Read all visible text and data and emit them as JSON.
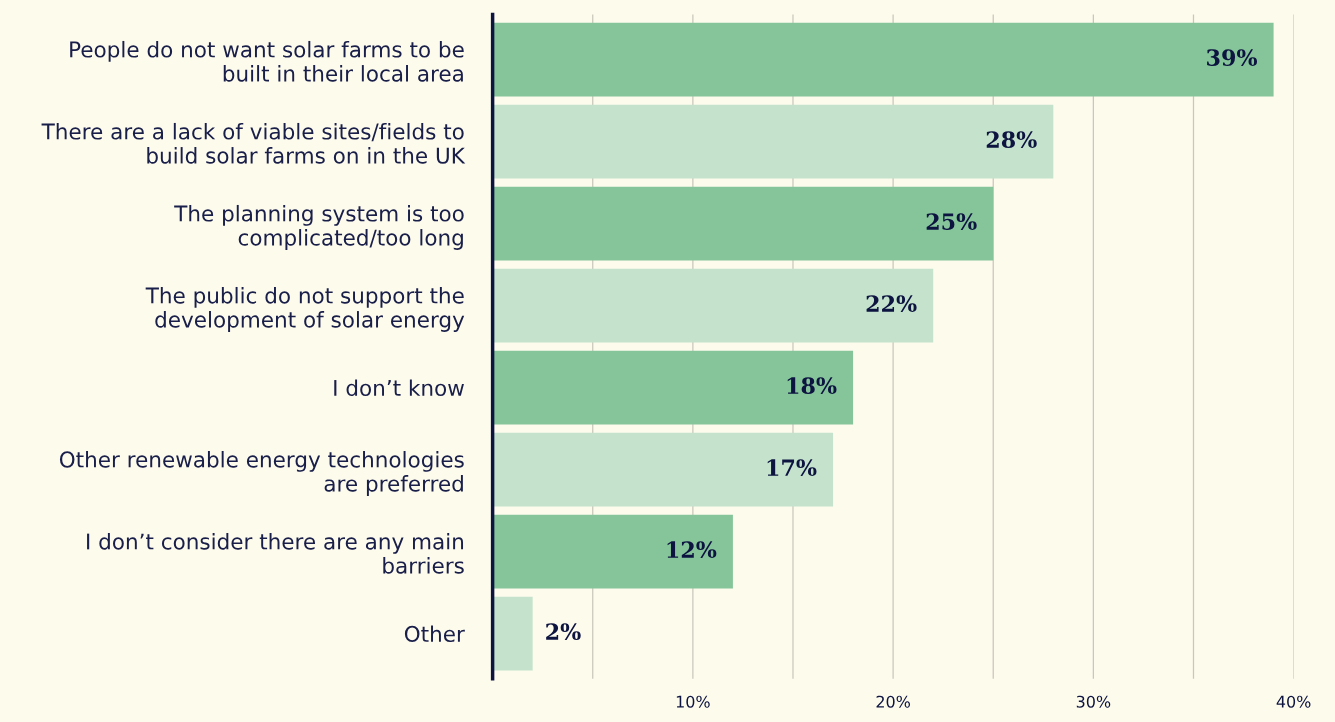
{
  "chart_data": {
    "type": "bar",
    "orientation": "horizontal",
    "categories": [
      "People do not want solar farms to be\nbuilt in their local area",
      "There are a lack of viable sites/fields to\nbuild solar farms on in the UK",
      "The planning system is too\ncomplicated/too long",
      "The public do not support the\ndevelopment of solar energy",
      "I don’t know",
      "Other renewable energy technologies\nare preferred",
      "I don’t consider there are any main\nbarriers",
      "Other"
    ],
    "values": [
      39,
      28,
      25,
      22,
      18,
      17,
      12,
      2
    ],
    "colors": [
      "#86c59a",
      "#c4e2cc",
      "#86c59a",
      "#c4e2cc",
      "#86c59a",
      "#c4e2cc",
      "#86c59a",
      "#c4e2cc"
    ],
    "value_labels": [
      "39%",
      "28%",
      "25%",
      "22%",
      "18%",
      "17%",
      "12%",
      "2%"
    ],
    "xlim": [
      0,
      40
    ],
    "xticks": [
      {
        "value": 5,
        "label": null
      },
      {
        "value": 10,
        "label": "10%"
      },
      {
        "value": 15,
        "label": null
      },
      {
        "value": 20,
        "label": "20%"
      },
      {
        "value": 25,
        "label": null
      },
      {
        "value": 30,
        "label": "30%"
      },
      {
        "value": 35,
        "label": null
      },
      {
        "value": 40,
        "label": "40%"
      }
    ],
    "grid": "x",
    "legend": false
  }
}
